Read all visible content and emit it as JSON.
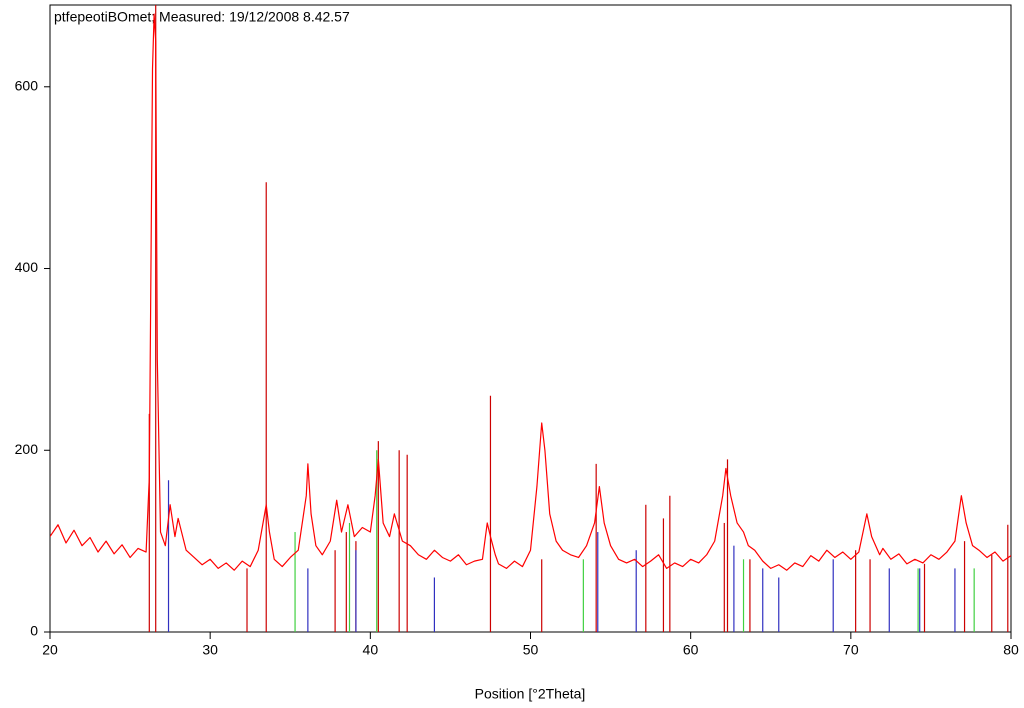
{
  "chart_data": {
    "type": "line",
    "title": "ptfepeotiBOmet; Measured: 19/12/2008 8.42.57",
    "xlabel": "Position [°2Theta]",
    "xlim": [
      20,
      80
    ],
    "ylim": [
      0,
      690
    ],
    "xticks": [
      20,
      30,
      40,
      50,
      60,
      70,
      80
    ],
    "yticks": [
      0,
      200,
      400,
      600
    ],
    "series": [
      {
        "style": "stick",
        "color": "#cc0000",
        "x": [
          26.2,
          26.6,
          32.3,
          33.5,
          37.8,
          38.5,
          39.1,
          40.5,
          41.8,
          42.3,
          47.5,
          50.7,
          54.1,
          57.2,
          58.3,
          58.7,
          62.1,
          62.3,
          63.7,
          70.3,
          71.2,
          74.6,
          77.1,
          78.8,
          79.8
        ],
        "values": [
          240,
          690,
          70,
          495,
          90,
          110,
          100,
          210,
          200,
          195,
          260,
          80,
          185,
          140,
          125,
          150,
          120,
          190,
          80,
          90,
          80,
          75,
          100,
          85,
          118
        ]
      },
      {
        "style": "stick",
        "color": "#3030c0",
        "x": [
          27.4,
          36.1,
          39.1,
          44.0,
          54.2,
          56.6,
          62.7,
          64.5,
          65.5,
          68.9,
          72.4,
          74.3,
          76.5
        ],
        "values": [
          167,
          70,
          90,
          60,
          110,
          90,
          95,
          70,
          60,
          80,
          70,
          70,
          70
        ]
      },
      {
        "style": "stick",
        "color": "#40d040",
        "x": [
          35.3,
          38.7,
          40.4,
          53.3,
          63.3,
          74.2,
          77.7
        ],
        "values": [
          110,
          120,
          200,
          80,
          80,
          70,
          70
        ]
      },
      {
        "style": "line",
        "color": "#ff0000",
        "x": [
          20,
          20.5,
          21,
          21.5,
          22,
          22.5,
          23,
          23.5,
          24,
          24.5,
          25,
          25.5,
          26,
          26.2,
          26.4,
          26.5,
          26.6,
          26.7,
          26.9,
          27.2,
          27.5,
          27.8,
          28,
          28.5,
          29,
          29.5,
          30,
          30.5,
          31,
          31.5,
          32,
          32.5,
          33,
          33.3,
          33.5,
          33.7,
          34,
          34.5,
          35,
          35.5,
          36,
          36.1,
          36.3,
          36.6,
          37,
          37.5,
          37.9,
          38.2,
          38.6,
          39,
          39.5,
          40,
          40.3,
          40.5,
          40.8,
          41.2,
          41.5,
          42,
          42.5,
          43,
          43.5,
          44,
          44.5,
          45,
          45.5,
          46,
          46.5,
          47,
          47.3,
          47.5,
          47.8,
          48,
          48.5,
          49,
          49.5,
          50,
          50.4,
          50.7,
          50.9,
          51.2,
          51.6,
          52,
          52.5,
          53,
          53.5,
          54,
          54.3,
          54.6,
          55,
          55.5,
          56,
          56.5,
          57,
          57.5,
          58,
          58.5,
          59,
          59.5,
          60,
          60.5,
          61,
          61.5,
          62,
          62.2,
          62.5,
          62.9,
          63.3,
          63.6,
          64,
          64.5,
          65,
          65.5,
          66,
          66.5,
          67,
          67.5,
          68,
          68.5,
          69,
          69.5,
          70,
          70.5,
          71,
          71.3,
          71.8,
          72,
          72.5,
          73,
          73.5,
          74,
          74.5,
          75,
          75.5,
          76,
          76.5,
          76.9,
          77.2,
          77.6,
          78,
          78.5,
          79,
          79.5,
          80
        ],
        "values": [
          105,
          118,
          98,
          112,
          95,
          104,
          88,
          100,
          86,
          96,
          82,
          92,
          88,
          170,
          620,
          680,
          650,
          300,
          110,
          95,
          140,
          105,
          125,
          90,
          82,
          74,
          80,
          70,
          76,
          68,
          78,
          72,
          90,
          120,
          140,
          110,
          80,
          72,
          82,
          90,
          150,
          185,
          130,
          95,
          85,
          100,
          145,
          110,
          140,
          105,
          115,
          110,
          150,
          190,
          120,
          105,
          130,
          100,
          95,
          85,
          80,
          90,
          82,
          78,
          85,
          74,
          78,
          80,
          120,
          105,
          85,
          75,
          70,
          78,
          72,
          90,
          160,
          230,
          200,
          130,
          100,
          90,
          85,
          82,
          95,
          120,
          160,
          120,
          95,
          80,
          76,
          80,
          72,
          78,
          85,
          70,
          76,
          72,
          80,
          76,
          85,
          100,
          150,
          180,
          150,
          120,
          110,
          95,
          90,
          78,
          70,
          74,
          68,
          76,
          72,
          84,
          78,
          90,
          82,
          88,
          80,
          88,
          130,
          105,
          85,
          92,
          80,
          86,
          75,
          80,
          76,
          85,
          80,
          88,
          100,
          150,
          120,
          95,
          90,
          82,
          88,
          78,
          84
        ]
      }
    ]
  }
}
